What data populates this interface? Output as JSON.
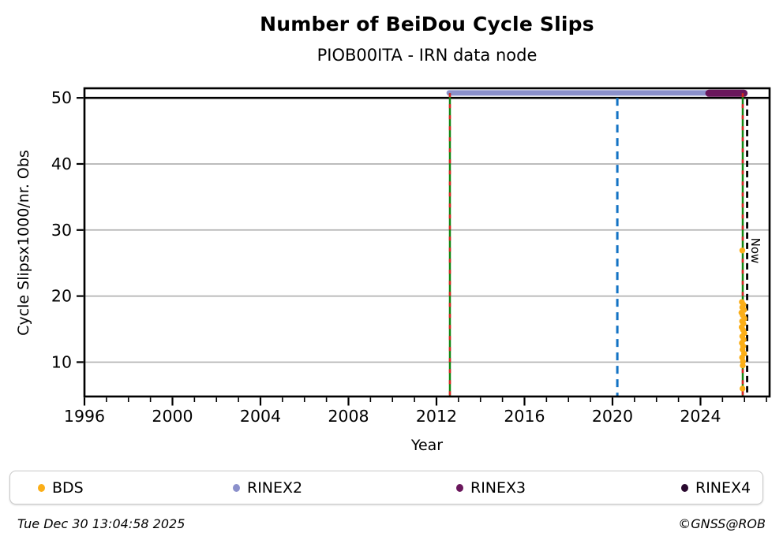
{
  "chart_data": {
    "type": "scatter",
    "title": "Number of BeiDou Cycle Slips",
    "subtitle": "PIOB00ITA - IRN data node",
    "xlabel": "Year",
    "ylabel": "Cycle Slipsx1000/nr. Obs",
    "now_label": "Now",
    "xlim": [
      1996,
      2027.14
    ],
    "ylim": [
      4.8,
      51.45
    ],
    "xticks_major": [
      1996,
      2000,
      2004,
      2008,
      2012,
      2016,
      2020,
      2024
    ],
    "xticks_minor_start": 1997,
    "xticks_minor_end": 2027,
    "yticks": [
      10,
      20,
      30,
      40,
      50
    ],
    "gridlines_y": [
      10,
      20,
      30,
      40
    ],
    "cap_line_y": 50,
    "grid_color": "#b3b3b3",
    "axis_color": "#000000",
    "series": [
      {
        "name": "BDS",
        "type": "scatter",
        "color": "#FBAE17",
        "points": [
          [
            2025.9,
            26.9
          ],
          [
            2025.88,
            19.1
          ],
          [
            2025.95,
            18.7
          ],
          [
            2025.9,
            18.3
          ],
          [
            2025.98,
            17.9
          ],
          [
            2025.86,
            17.5
          ],
          [
            2025.92,
            17.1
          ],
          [
            2026.0,
            16.6
          ],
          [
            2025.89,
            16.2
          ],
          [
            2025.95,
            15.8
          ],
          [
            2025.87,
            15.3
          ],
          [
            2025.93,
            14.9
          ],
          [
            2025.99,
            14.4
          ],
          [
            2025.9,
            13.9
          ],
          [
            2025.96,
            13.4
          ],
          [
            2025.88,
            12.9
          ],
          [
            2025.94,
            12.4
          ],
          [
            2025.91,
            11.9
          ],
          [
            2025.98,
            11.3
          ],
          [
            2025.89,
            10.7
          ],
          [
            2025.93,
            10.1
          ],
          [
            2025.92,
            9.5
          ],
          [
            2025.91,
            6.0
          ]
        ]
      },
      {
        "name": "RINEX2",
        "type": "segment",
        "color": "#8B90CB",
        "y": 50.75,
        "x0": 2012.58,
        "x1": 2025.0,
        "width": 7
      },
      {
        "name": "RINEX3",
        "type": "segment",
        "color": "#6A175C",
        "y": 50.7,
        "x0": 2024.38,
        "x1": 2025.98,
        "width": 9
      },
      {
        "name": "RINEX4",
        "type": "segment",
        "color": "#29082E",
        "y": null,
        "x0": null,
        "x1": null,
        "width": 9
      }
    ],
    "vlines": [
      {
        "x": 2012.61,
        "color": "#128712",
        "style": "solid",
        "width": 2.5,
        "dash": "",
        "top": 50.7
      },
      {
        "x": 2012.61,
        "color": "#DD2222",
        "style": "dashed",
        "width": 2.5,
        "dash": "5 9",
        "top": 50.7
      },
      {
        "x": 2020.22,
        "color": "#1272C4",
        "style": "dashed",
        "width": 3,
        "dash": "10 7",
        "top": 50.0
      },
      {
        "x": 2025.92,
        "color": "#128712",
        "style": "solid",
        "width": 2.5,
        "dash": "",
        "top": 50.7
      },
      {
        "x": 2025.92,
        "color": "#DD2222",
        "style": "dashed",
        "width": 2.5,
        "dash": "5 9",
        "top": 50.7
      },
      {
        "x": 2026.12,
        "color": "#000000",
        "style": "dashed",
        "width": 2.8,
        "dash": "8 5",
        "top": 49.8
      }
    ]
  },
  "legend": {
    "items": [
      {
        "label": "BDS",
        "color": "#FBAE17"
      },
      {
        "label": "RINEX2",
        "color": "#8B90CB"
      },
      {
        "label": "RINEX3",
        "color": "#6A175C"
      },
      {
        "label": "RINEX4",
        "color": "#29082E"
      }
    ]
  },
  "footer": {
    "timestamp": "Tue Dec 30 13:04:58 2025",
    "credit": "©GNSS@ROB"
  }
}
